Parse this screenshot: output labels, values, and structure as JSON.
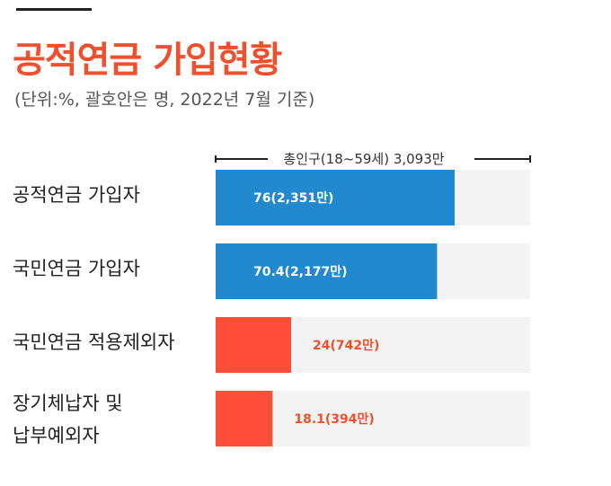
{
  "title": "공적연금 가입현황",
  "subtitle": "(단위:%, 괄호안은 명, 2022년 7월 기준)",
  "colors": {
    "title": "#f0502e",
    "blue": "#2289cf",
    "red": "#fe4e37",
    "track": "#f3f3f3",
    "value_on_blue": "#ffffff",
    "value_red_text": "#f0502e"
  },
  "chart_data": {
    "type": "bar",
    "orientation": "horizontal",
    "total_label": "총인구(18~59세) 3,093만",
    "xlim": [
      0,
      100
    ],
    "grid": false,
    "bars": [
      {
        "label_lines": [
          "공적연금 가입자"
        ],
        "value": 76,
        "display": "76(2,351만)",
        "color": "blue"
      },
      {
        "label_lines": [
          "국민연금 가입자"
        ],
        "value": 70.4,
        "display": "70.4(2,177만)",
        "color": "blue"
      },
      {
        "label_lines": [
          "국민연금 적용제외자"
        ],
        "value": 24,
        "display": "24(742만)",
        "color": "red"
      },
      {
        "label_lines": [
          "장기체납자 및",
          "납부예외자"
        ],
        "value": 18.1,
        "display": "18.1(394만)",
        "color": "red"
      }
    ]
  }
}
